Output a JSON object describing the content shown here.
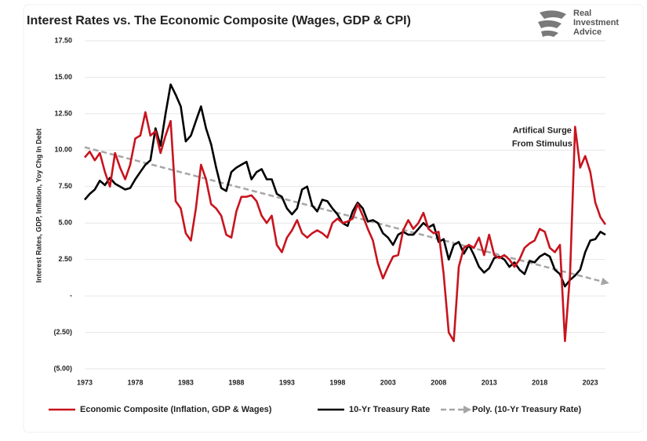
{
  "chart_data": {
    "type": "line",
    "title": "Interest Rates vs. The Economic Composite (Wages, GDP & CPI)",
    "y_label": "Interest Rates, GDP, Inflation, Yoy Chg In Debt",
    "logo": [
      "Real",
      "Investment",
      "Advice"
    ],
    "annotation": [
      "Artifical Surge",
      "From Stimulus"
    ],
    "annotation_at": [
      2021.5,
      11.6
    ],
    "xlim": [
      1973,
      2024.5
    ],
    "xticks": [
      1973,
      1978,
      1983,
      1988,
      1993,
      1998,
      2003,
      2008,
      2013,
      2018,
      2023
    ],
    "ylim": [
      -5,
      17.5
    ],
    "yticks": [
      {
        "value": -5,
        "label": "(5.00)"
      },
      {
        "value": -2.5,
        "label": "(2.50)"
      },
      {
        "value": 0,
        "label": "-"
      },
      {
        "value": 2.5,
        "label": "2.50"
      },
      {
        "value": 5,
        "label": "5.00"
      },
      {
        "value": 7.5,
        "label": "7.50"
      },
      {
        "value": 10,
        "label": "10.00"
      },
      {
        "value": 12.5,
        "label": "12.50"
      },
      {
        "value": 15,
        "label": "15.00"
      },
      {
        "value": 17.5,
        "label": "17.50"
      }
    ],
    "grid": true,
    "x": [
      1973,
      1973.5,
      1974,
      1974.5,
      1975,
      1975.5,
      1976,
      1976.5,
      1977,
      1977.5,
      1978,
      1978.5,
      1979,
      1979.5,
      1980,
      1980.5,
      1981,
      1981.5,
      1982,
      1982.5,
      1983,
      1983.5,
      1984,
      1984.5,
      1985,
      1985.5,
      1986,
      1986.5,
      1987,
      1987.5,
      1988,
      1988.5,
      1989,
      1989.5,
      1990,
      1990.5,
      1991,
      1991.5,
      1992,
      1992.5,
      1993,
      1993.5,
      1994,
      1994.5,
      1995,
      1995.5,
      1996,
      1996.5,
      1997,
      1997.5,
      1998,
      1998.5,
      1999,
      1999.5,
      2000,
      2000.5,
      2001,
      2001.5,
      2002,
      2002.5,
      2003,
      2003.5,
      2004,
      2004.5,
      2005,
      2005.5,
      2006,
      2006.5,
      2007,
      2007.5,
      2008,
      2008.5,
      2009,
      2009.5,
      2010,
      2010.5,
      2011,
      2011.5,
      2012,
      2012.5,
      2013,
      2013.5,
      2014,
      2014.5,
      2015,
      2015.5,
      2016,
      2016.5,
      2017,
      2017.5,
      2018,
      2018.5,
      2019,
      2019.5,
      2020,
      2020.5,
      2021,
      2021.5,
      2022,
      2022.5,
      2023,
      2023.5,
      2024,
      2024.5
    ],
    "series": [
      {
        "name": "Economic Composite (Inflation, GDP & Wages)",
        "color": "#c8141e",
        "dash": false,
        "arrow": false,
        "values": [
          9.5,
          9.9,
          9.3,
          9.8,
          8.5,
          7.5,
          9.8,
          8.8,
          8.0,
          9.0,
          10.8,
          11.0,
          12.6,
          11.0,
          11.3,
          9.8,
          11.0,
          12.0,
          6.5,
          6.0,
          4.3,
          3.8,
          6.0,
          9.0,
          8.0,
          6.3,
          6.0,
          5.5,
          4.2,
          4.0,
          5.8,
          6.8,
          6.8,
          6.9,
          6.5,
          5.5,
          5.0,
          5.5,
          3.5,
          3.0,
          4.0,
          4.5,
          5.2,
          4.3,
          4.0,
          4.3,
          4.5,
          4.3,
          4.0,
          5.0,
          5.3,
          5.0,
          5.1,
          5.3,
          6.3,
          5.5,
          4.6,
          3.8,
          2.2,
          1.2,
          2.0,
          2.7,
          2.8,
          4.5,
          5.2,
          4.6,
          5.0,
          5.7,
          4.6,
          4.3,
          4.4,
          1.5,
          -2.5,
          -3.1,
          2.0,
          3.3,
          3.5,
          3.3,
          4.0,
          2.8,
          4.2,
          2.8,
          2.6,
          2.8,
          2.5,
          2.0,
          2.5,
          3.3,
          3.6,
          3.8,
          4.6,
          4.4,
          3.3,
          3.0,
          3.5,
          -3.1,
          1.5,
          11.6,
          8.8,
          9.6,
          8.5,
          6.4,
          5.4,
          4.9
        ]
      },
      {
        "name": "10-Yr Treasury Rate",
        "color": "#000000",
        "dash": false,
        "arrow": false,
        "values": [
          6.6,
          7.0,
          7.3,
          7.9,
          7.6,
          8.1,
          7.7,
          7.5,
          7.3,
          7.4,
          8.0,
          8.5,
          9.0,
          9.3,
          11.5,
          10.3,
          12.5,
          14.5,
          13.8,
          13.0,
          10.6,
          11.0,
          12.0,
          13.0,
          11.5,
          10.4,
          8.8,
          7.4,
          7.2,
          8.5,
          8.8,
          9.0,
          9.2,
          8.0,
          8.5,
          8.7,
          8.0,
          8.0,
          7.0,
          6.8,
          6.0,
          5.6,
          6.0,
          7.3,
          7.5,
          6.2,
          5.8,
          6.6,
          6.5,
          6.0,
          5.6,
          5.0,
          4.8,
          5.8,
          6.4,
          6.0,
          5.1,
          5.2,
          5.0,
          4.3,
          4.0,
          3.5,
          4.2,
          4.4,
          4.2,
          4.2,
          4.6,
          5.0,
          4.7,
          4.9,
          3.7,
          3.9,
          2.5,
          3.5,
          3.7,
          2.9,
          3.5,
          2.8,
          2.0,
          1.6,
          1.9,
          2.6,
          2.7,
          2.5,
          2.0,
          2.3,
          1.8,
          1.5,
          2.4,
          2.3,
          2.7,
          2.9,
          2.7,
          1.8,
          1.5,
          0.65,
          1.1,
          1.4,
          1.8,
          3.0,
          3.8,
          3.9,
          4.4,
          4.2
        ]
      },
      {
        "name": "Poly. (10-Yr Treasury Rate)",
        "color": "#a6a6a6",
        "dash": true,
        "arrow": true,
        "values": [
          10.2,
          10.11,
          10.02,
          9.93,
          9.84,
          9.75,
          9.66,
          9.57,
          9.48,
          9.39,
          9.3,
          9.21,
          9.12,
          9.03,
          8.94,
          8.85,
          8.76,
          8.67,
          8.58,
          8.49,
          8.4,
          8.31,
          8.22,
          8.13,
          8.04,
          7.95,
          7.86,
          7.77,
          7.68,
          7.59,
          7.5,
          7.41,
          7.32,
          7.23,
          7.14,
          7.05,
          6.96,
          6.87,
          6.78,
          6.69,
          6.6,
          6.51,
          6.42,
          6.33,
          6.24,
          6.15,
          6.06,
          5.97,
          5.88,
          5.79,
          5.7,
          5.61,
          5.52,
          5.43,
          5.34,
          5.25,
          5.16,
          5.07,
          4.98,
          4.89,
          4.8,
          4.71,
          4.62,
          4.53,
          4.44,
          4.35,
          4.26,
          4.17,
          4.08,
          3.99,
          3.9,
          3.81,
          3.72,
          3.63,
          3.54,
          3.45,
          3.36,
          3.27,
          3.18,
          3.09,
          3.0,
          2.91,
          2.82,
          2.73,
          2.64,
          2.55,
          2.46,
          2.37,
          2.28,
          2.19,
          2.1,
          2.01,
          1.92,
          1.83,
          1.74,
          1.65,
          1.56,
          1.47,
          1.38,
          1.29,
          1.2,
          1.11,
          1.02,
          0.93
        ]
      }
    ]
  }
}
